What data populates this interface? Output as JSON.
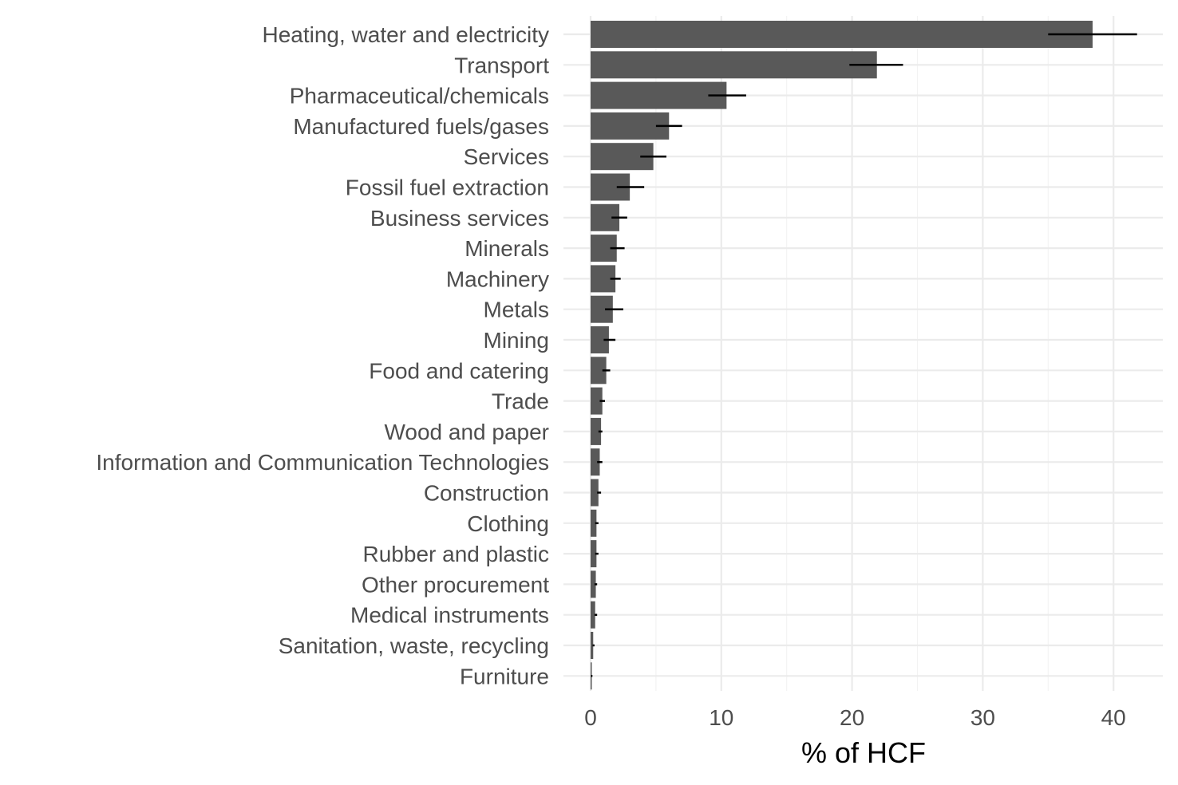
{
  "chart_data": {
    "type": "bar",
    "orientation": "horizontal",
    "title": "",
    "xlabel": "% of HCF",
    "ylabel": "",
    "xlim": [
      0,
      43
    ],
    "x_ticks": [
      0,
      10,
      20,
      30,
      40
    ],
    "grid": true,
    "legend": "none",
    "bar_color": "#595959",
    "categories": [
      "Heating, water and electricity",
      "Transport",
      "Pharmaceutical/chemicals",
      "Manufactured fuels/gases",
      "Services",
      "Fossil fuel extraction",
      "Business services",
      "Minerals",
      "Machinery",
      "Metals",
      "Mining",
      "Food and catering",
      "Trade",
      "Wood and paper",
      "Information and Communication Technologies",
      "Construction",
      "Clothing",
      "Rubber and plastic",
      "Other procurement",
      "Medical instruments",
      "Sanitation, waste, recycling",
      "Furniture"
    ],
    "values": [
      38.4,
      21.9,
      10.4,
      6.0,
      4.8,
      3.0,
      2.2,
      2.0,
      1.9,
      1.7,
      1.4,
      1.2,
      0.9,
      0.8,
      0.7,
      0.6,
      0.45,
      0.45,
      0.4,
      0.35,
      0.2,
      0.05
    ],
    "error_low": [
      35.0,
      19.8,
      9.0,
      5.0,
      3.8,
      2.0,
      1.6,
      1.5,
      1.5,
      1.1,
      1.0,
      0.9,
      0.7,
      0.6,
      0.5,
      0.5,
      0.35,
      0.35,
      0.3,
      0.3,
      0.15,
      0.02
    ],
    "error_high": [
      41.8,
      23.9,
      11.9,
      7.0,
      5.8,
      4.1,
      2.8,
      2.6,
      2.3,
      2.5,
      1.9,
      1.5,
      1.1,
      0.9,
      0.9,
      0.8,
      0.6,
      0.6,
      0.5,
      0.5,
      0.3,
      0.1
    ]
  }
}
